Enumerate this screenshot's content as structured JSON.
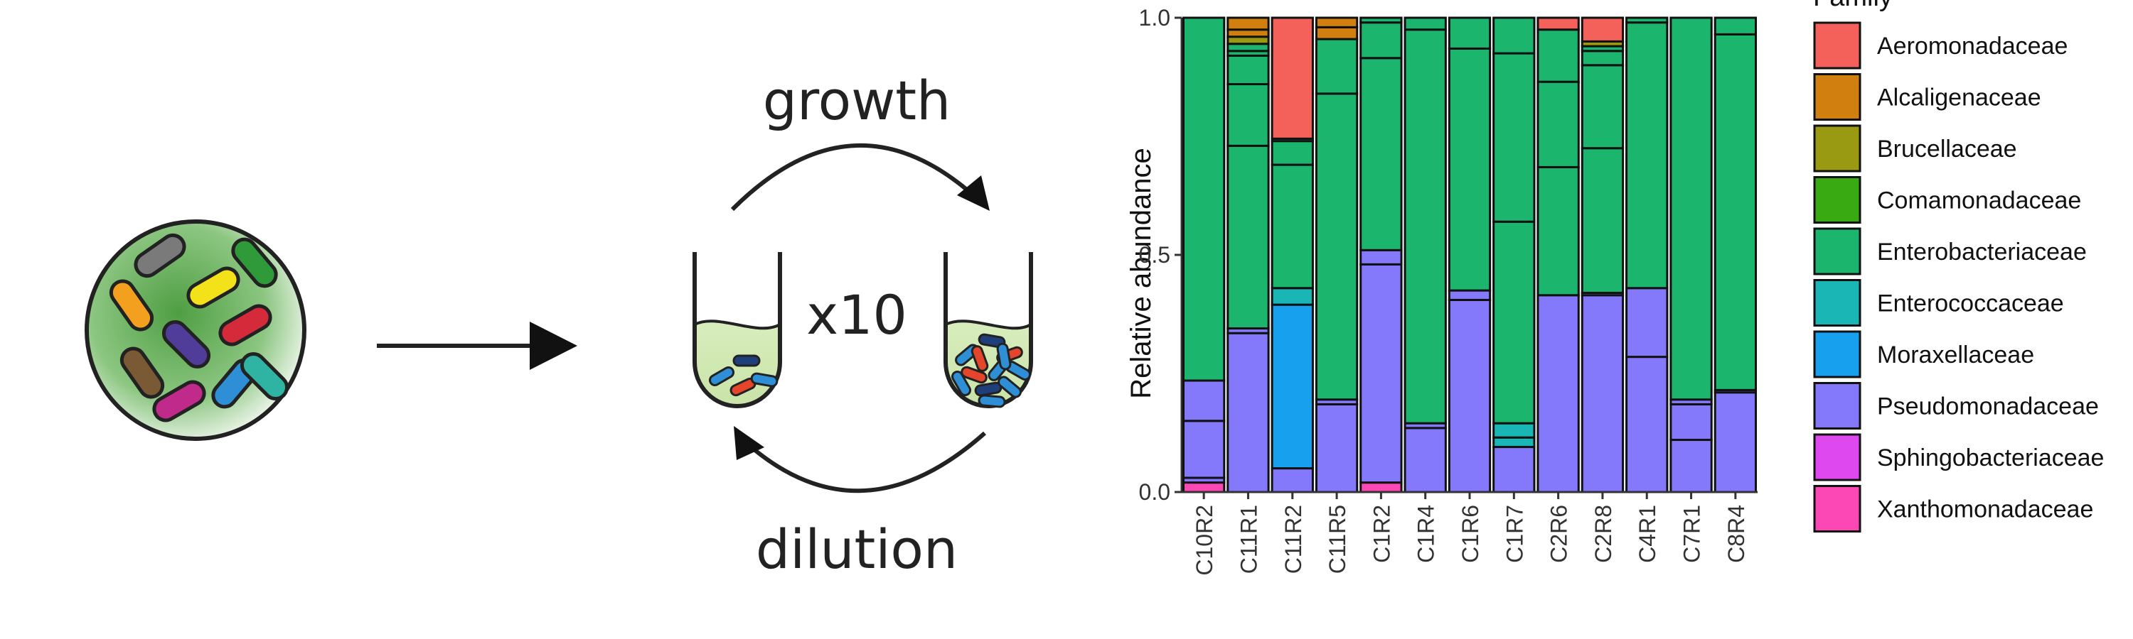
{
  "schematic": {
    "growth_label": "growth",
    "dilution_label": "dilution",
    "cycle_label": "x10",
    "community_cell_colors": [
      "#7a7a7a",
      "#2e9a3a",
      "#f2a01e",
      "#f3e21a",
      "#503d9a",
      "#d42a3a",
      "#7a5a35",
      "#c02a8a",
      "#2f8fd6",
      "#2fb3a3"
    ],
    "tube_cell_colors": [
      "#2f8fd6",
      "#e5452a",
      "#1f3f7a"
    ]
  },
  "chart_data": {
    "type": "bar",
    "stacked": true,
    "ylabel": "Relative abundance",
    "xlabel": "",
    "ylim": [
      0,
      1
    ],
    "yticks": [
      "0.0",
      "0.5",
      "1.0"
    ],
    "legend_title": "Family",
    "legend_position": "right",
    "categories": [
      "C10R2",
      "C11R1",
      "C11R2",
      "C11R5",
      "C1R2",
      "C1R4",
      "C1R6",
      "C1R7",
      "C2R6",
      "C2R8",
      "C4R1",
      "C7R1",
      "C8R4"
    ],
    "families": [
      {
        "name": "Aeromonadaceae",
        "color": "#F4615A"
      },
      {
        "name": "Alcaligenaceae",
        "color": "#D17F0E"
      },
      {
        "name": "Brucellaceae",
        "color": "#9A9A12"
      },
      {
        "name": "Comamonadaceae",
        "color": "#3AAA12"
      },
      {
        "name": "Enterobacteriaceae",
        "color": "#1BB56D"
      },
      {
        "name": "Enterococcaceae",
        "color": "#1AB5B5"
      },
      {
        "name": "Moraxellaceae",
        "color": "#17A0EE"
      },
      {
        "name": "Pseudomonadaceae",
        "color": "#8479FB"
      },
      {
        "name": "Sphingobacteriaceae",
        "color": "#DE48EF"
      },
      {
        "name": "Xanthomonadaceae",
        "color": "#FC48B5"
      }
    ],
    "series": [
      {
        "category": "C10R2",
        "segments": [
          {
            "family": "Xanthomonadaceae",
            "value": 0.02
          },
          {
            "family": "Pseudomonadaceae",
            "value": 0.01
          },
          {
            "family": "Pseudomonadaceae",
            "value": 0.12
          },
          {
            "family": "Pseudomonadaceae",
            "value": 0.085
          },
          {
            "family": "Enterobacteriaceae",
            "value": 0.765
          }
        ]
      },
      {
        "category": "C11R1",
        "segments": [
          {
            "family": "Pseudomonadaceae",
            "value": 0.335
          },
          {
            "family": "Pseudomonadaceae",
            "value": 0.01
          },
          {
            "family": "Enterobacteriaceae",
            "value": 0.385
          },
          {
            "family": "Enterobacteriaceae",
            "value": 0.13
          },
          {
            "family": "Enterobacteriaceae",
            "value": 0.06
          },
          {
            "family": "Enterobacteriaceae",
            "value": 0.01
          },
          {
            "family": "Enterobacteriaceae",
            "value": 0.015
          },
          {
            "family": "Brucellaceae",
            "value": 0.015
          },
          {
            "family": "Alcaligenaceae",
            "value": 0.015
          },
          {
            "family": "Alcaligenaceae",
            "value": 0.025
          }
        ]
      },
      {
        "category": "C11R2",
        "segments": [
          {
            "family": "Pseudomonadaceae",
            "value": 0.05
          },
          {
            "family": "Moraxellaceae",
            "value": 0.345
          },
          {
            "family": "Enterococcaceae",
            "value": 0.035
          },
          {
            "family": "Enterobacteriaceae",
            "value": 0.26
          },
          {
            "family": "Enterobacteriaceae",
            "value": 0.05
          },
          {
            "family": "Enterobacteriaceae",
            "value": 0.005
          },
          {
            "family": "Aeromonadaceae",
            "value": 0.255
          }
        ]
      },
      {
        "category": "C11R5",
        "segments": [
          {
            "family": "Pseudomonadaceae",
            "value": 0.185
          },
          {
            "family": "Pseudomonadaceae",
            "value": 0.01
          },
          {
            "family": "Enterobacteriaceae",
            "value": 0.645
          },
          {
            "family": "Enterobacteriaceae",
            "value": 0.115
          },
          {
            "family": "Alcaligenaceae",
            "value": 0.025
          },
          {
            "family": "Alcaligenaceae",
            "value": 0.02
          }
        ]
      },
      {
        "category": "C1R2",
        "segments": [
          {
            "family": "Xanthomonadaceae",
            "value": 0.02
          },
          {
            "family": "Pseudomonadaceae",
            "value": 0.46
          },
          {
            "family": "Pseudomonadaceae",
            "value": 0.03
          },
          {
            "family": "Enterobacteriaceae",
            "value": 0.405
          },
          {
            "family": "Enterobacteriaceae",
            "value": 0.075
          },
          {
            "family": "Enterobacteriaceae",
            "value": 0.01
          }
        ]
      },
      {
        "category": "C1R4",
        "segments": [
          {
            "family": "Pseudomonadaceae",
            "value": 0.135
          },
          {
            "family": "Pseudomonadaceae",
            "value": 0.01
          },
          {
            "family": "Enterobacteriaceae",
            "value": 0.83
          },
          {
            "family": "Enterobacteriaceae",
            "value": 0.025
          }
        ]
      },
      {
        "category": "C1R6",
        "segments": [
          {
            "family": "Pseudomonadaceae",
            "value": 0.405
          },
          {
            "family": "Pseudomonadaceae",
            "value": 0.02
          },
          {
            "family": "Enterobacteriaceae",
            "value": 0.51
          },
          {
            "family": "Enterobacteriaceae",
            "value": 0.065
          }
        ]
      },
      {
        "category": "C1R7",
        "segments": [
          {
            "family": "Pseudomonadaceae",
            "value": 0.095
          },
          {
            "family": "Enterococcaceae",
            "value": 0.02
          },
          {
            "family": "Enterococcaceae",
            "value": 0.03
          },
          {
            "family": "Enterobacteriaceae",
            "value": 0.425
          },
          {
            "family": "Enterobacteriaceae",
            "value": 0.355
          },
          {
            "family": "Enterobacteriaceae",
            "value": 0.075
          }
        ]
      },
      {
        "category": "C2R6",
        "segments": [
          {
            "family": "Pseudomonadaceae",
            "value": 0.415
          },
          {
            "family": "Enterobacteriaceae",
            "value": 0.27
          },
          {
            "family": "Enterobacteriaceae",
            "value": 0.18
          },
          {
            "family": "Enterobacteriaceae",
            "value": 0.11
          },
          {
            "family": "Aeromonadaceae",
            "value": 0.025
          }
        ]
      },
      {
        "category": "C2R8",
        "segments": [
          {
            "family": "Pseudomonadaceae",
            "value": 0.415
          },
          {
            "family": "Pseudomonadaceae",
            "value": 0.005
          },
          {
            "family": "Enterobacteriaceae",
            "value": 0.305
          },
          {
            "family": "Enterobacteriaceae",
            "value": 0.175
          },
          {
            "family": "Enterobacteriaceae",
            "value": 0.03
          },
          {
            "family": "Enterobacteriaceae",
            "value": 0.01
          },
          {
            "family": "Brucellaceae",
            "value": 0.01
          },
          {
            "family": "Aeromonadaceae",
            "value": 0.05
          }
        ]
      },
      {
        "category": "C4R1",
        "segments": [
          {
            "family": "Pseudomonadaceae",
            "value": 0.285
          },
          {
            "family": "Pseudomonadaceae",
            "value": 0.145
          },
          {
            "family": "Enterobacteriaceae",
            "value": 0.56
          },
          {
            "family": "Enterobacteriaceae",
            "value": 0.01
          }
        ]
      },
      {
        "category": "C7R1",
        "segments": [
          {
            "family": "Pseudomonadaceae",
            "value": 0.11
          },
          {
            "family": "Pseudomonadaceae",
            "value": 0.075
          },
          {
            "family": "Pseudomonadaceae",
            "value": 0.01
          },
          {
            "family": "Enterobacteriaceae",
            "value": 0.805
          }
        ]
      },
      {
        "category": "C8R4",
        "segments": [
          {
            "family": "Pseudomonadaceae",
            "value": 0.21
          },
          {
            "family": "Pseudomonadaceae",
            "value": 0.005
          },
          {
            "family": "Enterobacteriaceae",
            "value": 0.75
          },
          {
            "family": "Enterobacteriaceae",
            "value": 0.035
          }
        ]
      }
    ]
  }
}
